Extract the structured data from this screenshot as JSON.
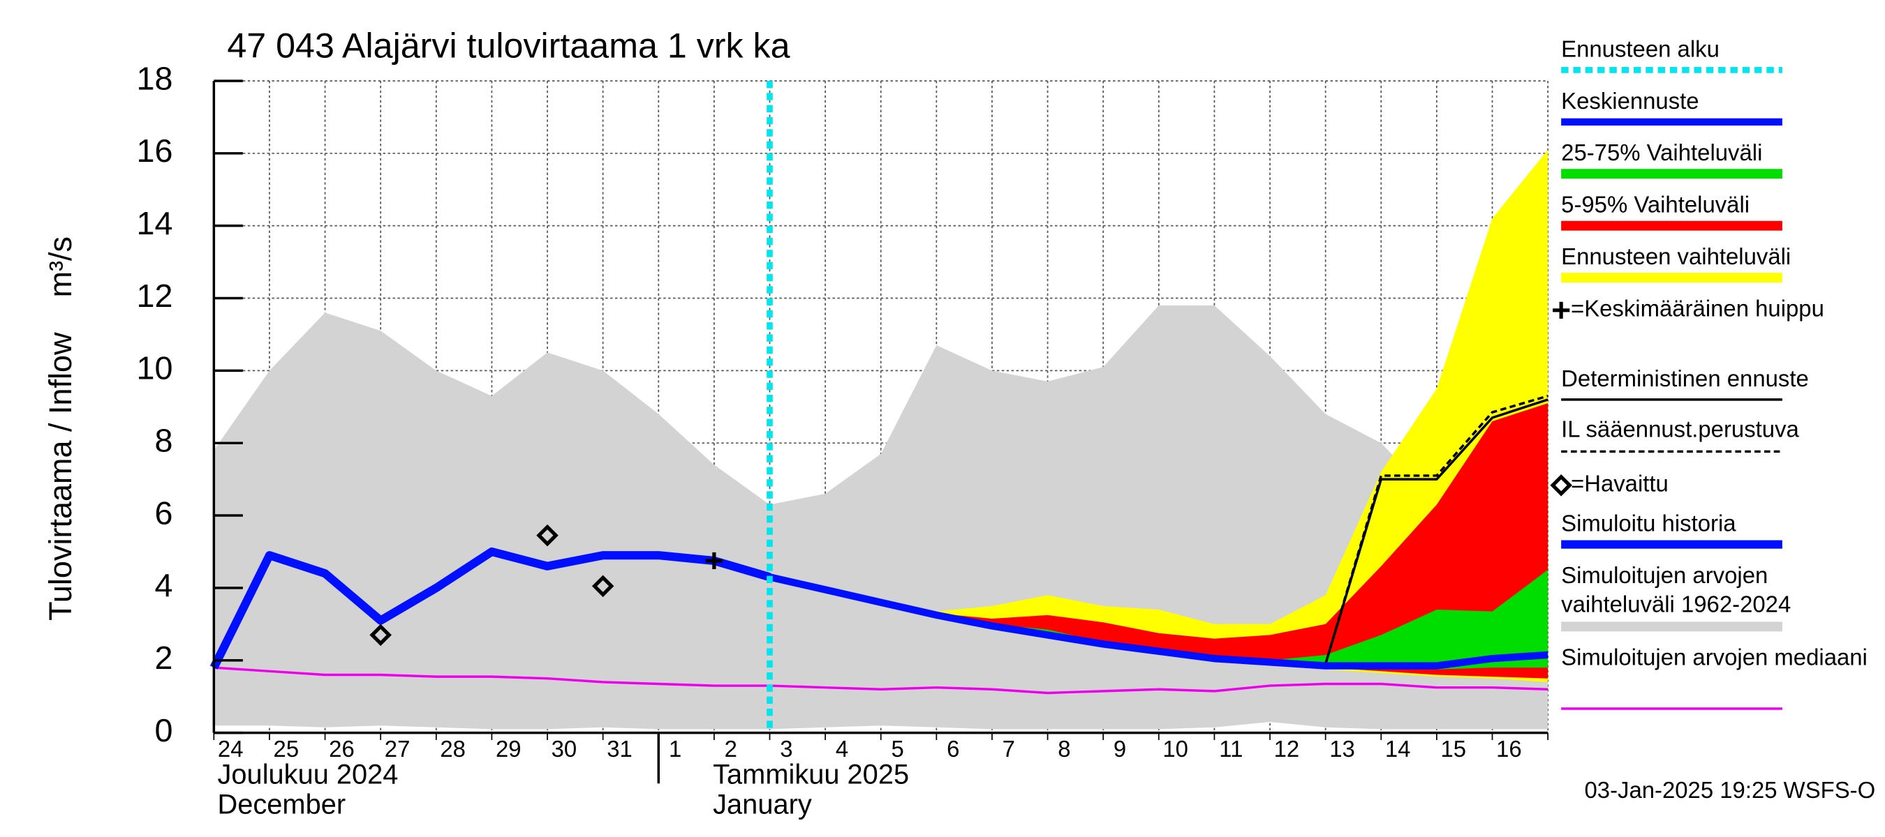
{
  "chart_data": {
    "type": "line",
    "title": "47 043 Alajärvi tulovirtaama 1 vrk ka",
    "y_label": "Tulovirtaama / Inflow    m³/s",
    "categories": [
      "24",
      "25",
      "26",
      "27",
      "28",
      "29",
      "30",
      "31",
      "1",
      "2",
      "3",
      "4",
      "5",
      "6",
      "7",
      "8",
      "9",
      "10",
      "11",
      "12",
      "13",
      "14",
      "15",
      "16",
      null
    ],
    "months": [
      {
        "fi": "Joulukuu  2024",
        "en": "December"
      },
      {
        "fi": "Tammikuu  2025",
        "en": "January"
      }
    ],
    "ylim": [
      0,
      18
    ],
    "yticks": [
      0,
      2,
      4,
      6,
      8,
      10,
      12,
      14,
      16,
      18
    ],
    "grid": true,
    "forecast_start": {
      "name": "Ennusteen alku",
      "color": "#00e5ee",
      "x": 10
    },
    "series": [
      {
        "name": "Keskiennuste",
        "style": "line",
        "color": "#0010ff",
        "linewidth": 6,
        "values": [
          null,
          null,
          null,
          null,
          null,
          null,
          null,
          null,
          null,
          null,
          4.3,
          3.95,
          3.6,
          3.25,
          2.95,
          2.7,
          2.45,
          2.25,
          2.05,
          1.95,
          1.85,
          1.85,
          1.85,
          2.05,
          2.15
        ]
      },
      {
        "name": "25-75% Vaihteluväli",
        "style": "band",
        "color": "#00dd00",
        "values": [
          null,
          null,
          null,
          null,
          null,
          null,
          null,
          null,
          null,
          null,
          4.3,
          3.95,
          3.6,
          3.3,
          3.0,
          2.85,
          2.5,
          2.3,
          2.1,
          2.0,
          2.15,
          2.7,
          3.4,
          3.35,
          4.5
        ],
        "lower": [
          null,
          null,
          null,
          null,
          null,
          null,
          null,
          null,
          null,
          null,
          4.3,
          3.95,
          3.6,
          3.25,
          2.95,
          2.7,
          2.45,
          2.2,
          2.0,
          1.9,
          1.85,
          1.8,
          1.75,
          1.8,
          1.8
        ]
      },
      {
        "name": "5-95% Vaihteluväli",
        "style": "band",
        "color": "#ff0000",
        "values": [
          null,
          null,
          null,
          null,
          null,
          null,
          null,
          null,
          null,
          null,
          4.3,
          3.95,
          3.6,
          3.3,
          3.15,
          3.25,
          3.05,
          2.75,
          2.6,
          2.7,
          3.0,
          4.6,
          6.3,
          8.6,
          9.1
        ],
        "lower": [
          null,
          null,
          null,
          null,
          null,
          null,
          null,
          null,
          null,
          null,
          4.3,
          3.95,
          3.6,
          3.25,
          2.95,
          2.7,
          2.45,
          2.2,
          2.0,
          1.9,
          1.8,
          1.7,
          1.6,
          1.55,
          1.5
        ]
      },
      {
        "name": "Ennusteen vaihteluväli",
        "style": "band",
        "color": "#ffff00",
        "values": [
          null,
          null,
          null,
          null,
          null,
          null,
          null,
          null,
          null,
          null,
          4.3,
          3.95,
          3.6,
          3.35,
          3.5,
          3.8,
          3.5,
          3.4,
          3.0,
          3.0,
          3.8,
          7.2,
          9.5,
          14.2,
          16.1
        ],
        "lower": [
          null,
          null,
          null,
          null,
          null,
          null,
          null,
          null,
          null,
          null,
          4.3,
          3.95,
          3.6,
          3.25,
          2.95,
          2.7,
          2.45,
          2.2,
          2.0,
          1.9,
          1.75,
          1.65,
          1.55,
          1.5,
          1.4
        ]
      },
      {
        "name": "=Keskimääräinen huippu",
        "style": "markers",
        "marker": "plus",
        "color": "#000000",
        "values": [
          null,
          null,
          null,
          null,
          null,
          null,
          null,
          null,
          null,
          4.75,
          null,
          null,
          null,
          null,
          null,
          null,
          null,
          null,
          null,
          null,
          null,
          null,
          null,
          null,
          null
        ]
      },
      {
        "name": "Deterministinen ennuste",
        "style": "line",
        "color": "#000000",
        "linewidth": 2,
        "values": [
          null,
          null,
          null,
          null,
          null,
          null,
          null,
          null,
          null,
          null,
          4.3,
          3.95,
          3.6,
          3.25,
          2.95,
          2.7,
          2.45,
          2.25,
          2.05,
          1.95,
          1.9,
          7.0,
          7.0,
          8.7,
          9.2
        ]
      },
      {
        "name": "IL sääennust.perustuva",
        "style": "dashed",
        "color": "#000000",
        "linewidth": 2,
        "values": [
          null,
          null,
          null,
          null,
          null,
          null,
          null,
          null,
          null,
          null,
          4.3,
          3.95,
          3.6,
          3.25,
          2.95,
          2.7,
          2.45,
          2.25,
          2.05,
          1.95,
          1.9,
          7.1,
          7.1,
          8.85,
          9.3
        ]
      },
      {
        "name": "=Havaittu",
        "style": "markers",
        "marker": "diamond",
        "color": "#000000",
        "values": [
          null,
          null,
          null,
          2.7,
          null,
          null,
          5.45,
          4.05,
          null,
          null,
          null,
          null,
          null,
          null,
          null,
          null,
          null,
          null,
          null,
          null,
          null,
          null,
          null,
          null,
          null
        ]
      },
      {
        "name": "Simuloitu historia",
        "style": "line",
        "color": "#0010ff",
        "linewidth": 7,
        "values": [
          1.8,
          4.9,
          4.4,
          3.1,
          4.0,
          5.0,
          4.6,
          4.9,
          4.9,
          4.75,
          4.3,
          null,
          null,
          null,
          null,
          null,
          null,
          null,
          null,
          null,
          null,
          null,
          null,
          null,
          null
        ]
      },
      {
        "name": "Simuloitujen arvojen vaihteluväli 1962-2024",
        "style": "band",
        "color": "#d3d3d3",
        "values": [
          7.8,
          10.0,
          11.6,
          11.1,
          10.0,
          9.3,
          10.5,
          10.0,
          8.8,
          7.4,
          6.3,
          6.6,
          7.7,
          10.7,
          10.0,
          9.7,
          10.1,
          11.8,
          11.8,
          10.4,
          8.8,
          8.0,
          6.4,
          9.6,
          11.5
        ],
        "lower": [
          0.2,
          0.2,
          0.15,
          0.2,
          0.15,
          0.1,
          0.1,
          0.15,
          0.1,
          0.1,
          0.1,
          0.15,
          0.2,
          0.15,
          0.1,
          0.1,
          0.1,
          0.1,
          0.15,
          0.3,
          0.15,
          0.1,
          0.1,
          0.1,
          0.1
        ]
      },
      {
        "name": "Simuloitujen arvojen mediaani",
        "style": "line",
        "color": "#ee00ee",
        "linewidth": 2,
        "values": [
          1.8,
          1.7,
          1.6,
          1.6,
          1.55,
          1.55,
          1.5,
          1.4,
          1.35,
          1.3,
          1.3,
          1.25,
          1.2,
          1.25,
          1.2,
          1.1,
          1.15,
          1.2,
          1.15,
          1.3,
          1.35,
          1.35,
          1.25,
          1.25,
          1.2
        ]
      }
    ],
    "footer": "03-Jan-2025 19:25 WSFS-O"
  }
}
